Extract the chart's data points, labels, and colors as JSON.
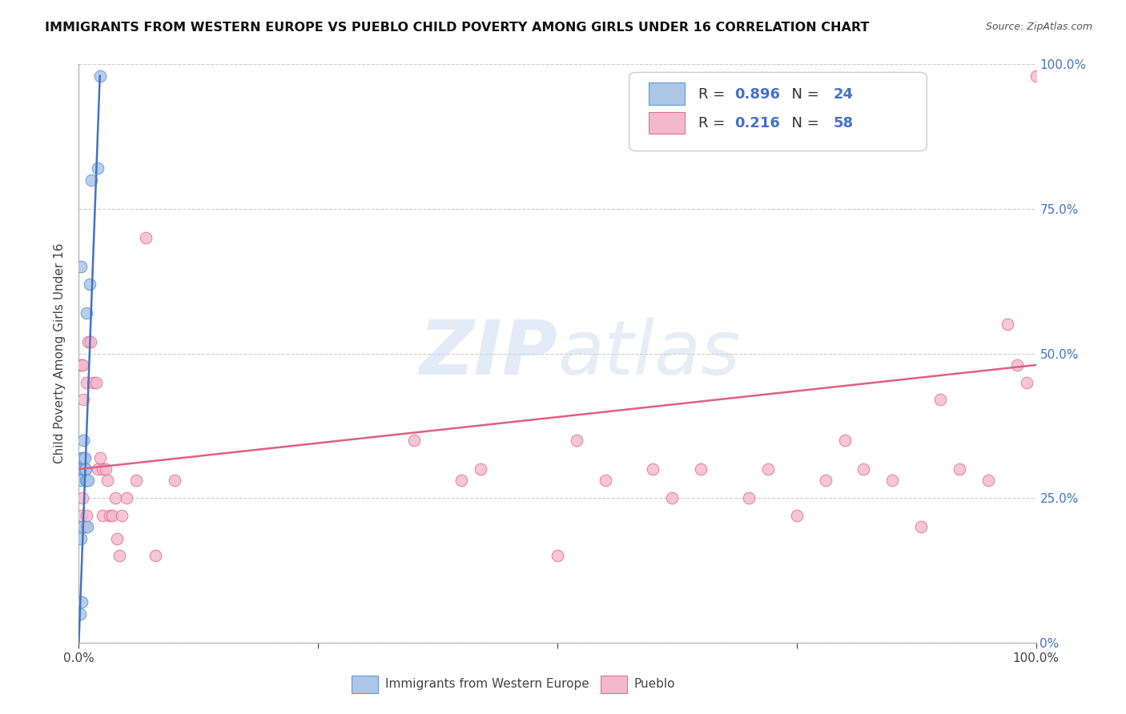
{
  "title": "IMMIGRANTS FROM WESTERN EUROPE VS PUEBLO CHILD POVERTY AMONG GIRLS UNDER 16 CORRELATION CHART",
  "source": "Source: ZipAtlas.com",
  "ylabel_left": "Child Poverty Among Girls Under 16",
  "legend_bottom": [
    "Immigrants from Western Europe",
    "Pueblo"
  ],
  "blue_R": "0.896",
  "blue_N": "24",
  "pink_R": "0.216",
  "pink_N": "58",
  "blue_color": "#aec6e8",
  "pink_color": "#f4b8cc",
  "blue_edge_color": "#5b9bd5",
  "pink_edge_color": "#e07098",
  "blue_line_color": "#4472c4",
  "pink_line_color": "#e06080",
  "legend_R_color": "#4472c4",
  "watermark_color": "#d0dff0",
  "background_color": "#ffffff",
  "blue_scatter_x": [
    0.001,
    0.002,
    0.002,
    0.003,
    0.003,
    0.003,
    0.003,
    0.004,
    0.004,
    0.005,
    0.005,
    0.005,
    0.006,
    0.006,
    0.007,
    0.007,
    0.008,
    0.008,
    0.009,
    0.01,
    0.011,
    0.013,
    0.02,
    0.022
  ],
  "blue_scatter_y": [
    0.05,
    0.18,
    0.65,
    0.07,
    0.28,
    0.3,
    0.32,
    0.2,
    0.32,
    0.3,
    0.32,
    0.35,
    0.3,
    0.32,
    0.28,
    0.3,
    0.28,
    0.57,
    0.2,
    0.28,
    0.62,
    0.8,
    0.82,
    0.98
  ],
  "pink_scatter_x": [
    0.001,
    0.002,
    0.003,
    0.003,
    0.004,
    0.004,
    0.005,
    0.005,
    0.006,
    0.006,
    0.007,
    0.008,
    0.008,
    0.01,
    0.012,
    0.015,
    0.018,
    0.02,
    0.022,
    0.025,
    0.025,
    0.028,
    0.03,
    0.032,
    0.035,
    0.038,
    0.04,
    0.042,
    0.045,
    0.05,
    0.06,
    0.07,
    0.08,
    0.1,
    0.35,
    0.4,
    0.42,
    0.5,
    0.52,
    0.55,
    0.6,
    0.62,
    0.65,
    0.7,
    0.72,
    0.75,
    0.78,
    0.8,
    0.82,
    0.85,
    0.88,
    0.9,
    0.92,
    0.95,
    0.97,
    0.98,
    0.99,
    1.0
  ],
  "pink_scatter_y": [
    0.48,
    0.3,
    0.22,
    0.48,
    0.25,
    0.48,
    0.2,
    0.42,
    0.2,
    0.3,
    0.2,
    0.22,
    0.45,
    0.52,
    0.52,
    0.45,
    0.45,
    0.3,
    0.32,
    0.3,
    0.22,
    0.3,
    0.28,
    0.22,
    0.22,
    0.25,
    0.18,
    0.15,
    0.22,
    0.25,
    0.28,
    0.7,
    0.15,
    0.28,
    0.35,
    0.28,
    0.3,
    0.15,
    0.35,
    0.28,
    0.3,
    0.25,
    0.3,
    0.25,
    0.3,
    0.22,
    0.28,
    0.35,
    0.3,
    0.28,
    0.2,
    0.42,
    0.3,
    0.28,
    0.55,
    0.48,
    0.45,
    0.98
  ],
  "blue_trendline_x": [
    0.0,
    0.022
  ],
  "blue_trendline_y": [
    0.0,
    0.98
  ],
  "pink_trendline_x": [
    0.0,
    1.0
  ],
  "pink_trendline_y": [
    0.3,
    0.48
  ],
  "xlim": [
    0.0,
    1.0
  ],
  "ylim": [
    0.0,
    1.0
  ],
  "yticks": [
    0.0,
    0.25,
    0.5,
    0.75,
    1.0
  ],
  "ytick_labels_right": [
    "0%",
    "25.0%",
    "50.0%",
    "75.0%",
    "100.0%"
  ],
  "xticks": [
    0.0,
    0.25,
    0.5,
    0.75,
    1.0
  ],
  "xtick_labels": [
    "0.0%",
    "",
    "",
    "",
    "100.0%"
  ],
  "figsize": [
    14.06,
    8.92
  ],
  "dpi": 100,
  "marker_size": 110
}
